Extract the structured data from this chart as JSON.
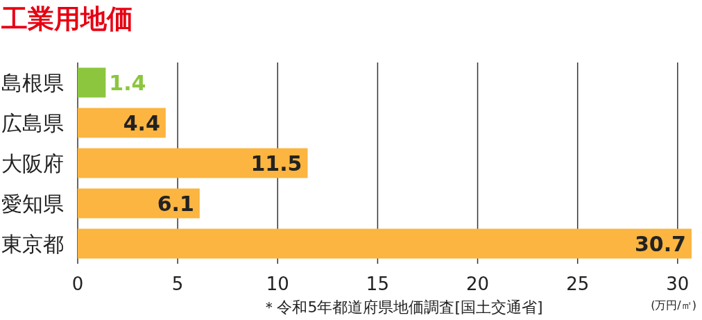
{
  "chart_data": {
    "type": "bar",
    "orientation": "horizontal",
    "title": "工業用地価",
    "xlabel": "(万円/㎡)",
    "categories": [
      "島根県",
      "広島県",
      "大阪府",
      "愛知県",
      "東京都"
    ],
    "values": [
      1.4,
      4.4,
      11.5,
      6.1,
      30.7
    ],
    "colors": [
      "#8cc63f",
      "#fbb540",
      "#fbb540",
      "#fbb540",
      "#fbb540"
    ],
    "xlim": [
      0,
      30.7
    ],
    "xticks": [
      0,
      5,
      10,
      15,
      20,
      25,
      30
    ],
    "grid": "x",
    "data_labels": true,
    "annotations": [
      "＊令和5年都道府県地価調査[国土交通省]"
    ]
  }
}
